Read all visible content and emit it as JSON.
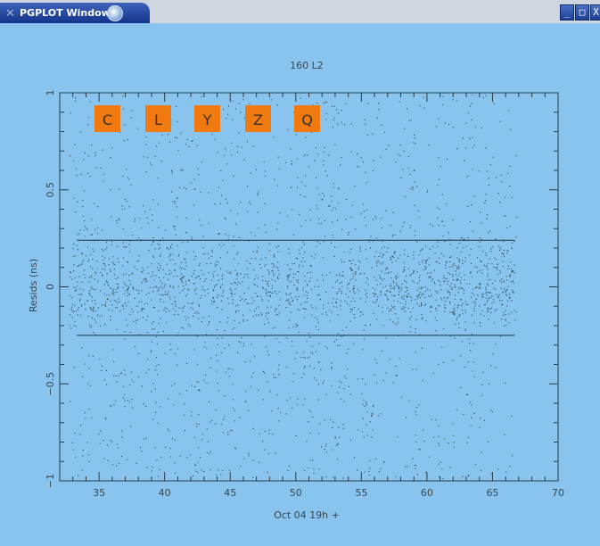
{
  "window": {
    "title": "PGPLOT Window 1",
    "icons": [
      "x-logo-icon",
      "app-icon",
      "minimize-icon",
      "maximize-icon",
      "close-icon"
    ],
    "minimize_glyph": "_",
    "maximize_glyph": "□",
    "close_glyph": "X"
  },
  "chart_data": {
    "type": "scatter",
    "title": "160 L2",
    "xlabel": "Oct 04 19h +",
    "ylabel": "Resids (ns)",
    "xlim": [
      32,
      70
    ],
    "ylim": [
      -1,
      1
    ],
    "xticks": [
      35,
      40,
      45,
      50,
      55,
      60,
      65,
      70
    ],
    "yticks": [
      -1,
      -0.5,
      0,
      0.5,
      1
    ],
    "ytick_labels": [
      "−1",
      "−0.5",
      "0",
      "0.5",
      "1"
    ],
    "reference_lines_y": [
      0.24,
      -0.25
    ],
    "data_gap_x": [
      48.8,
      49.2
    ],
    "data_x_range": [
      32.7,
      66.8
    ],
    "point_color": "#2c4550",
    "labels": [
      {
        "text": "C",
        "x": 34
      },
      {
        "text": "L",
        "x": 38
      },
      {
        "text": "Y",
        "x": 42
      },
      {
        "text": "Z",
        "x": 46
      },
      {
        "text": "Q",
        "x": 50
      }
    ],
    "label_color": "#f07a10",
    "background": "#88c4ee"
  }
}
